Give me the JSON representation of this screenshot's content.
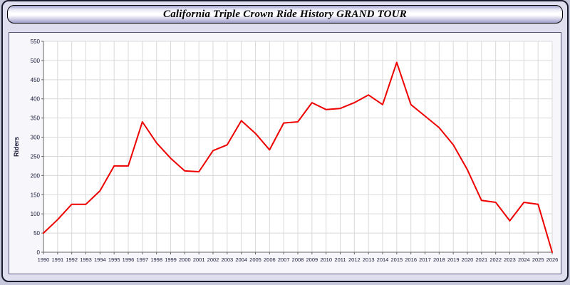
{
  "header": {
    "title": "California Triple Crown Ride History GRAND TOUR"
  },
  "chart_data": {
    "type": "line",
    "title": "California Triple Crown Ride History GRAND TOUR",
    "xlabel": "",
    "ylabel": "Riders",
    "ylim": [
      0,
      550
    ],
    "ytick_step": 50,
    "grid": true,
    "legend": "none",
    "line_color": "#ee0000",
    "plot_background": "#ffffff",
    "x": [
      1990,
      1991,
      1992,
      1993,
      1994,
      1995,
      1996,
      1997,
      1998,
      1999,
      2000,
      2001,
      2002,
      2003,
      2004,
      2005,
      2006,
      2007,
      2008,
      2009,
      2010,
      2011,
      2012,
      2013,
      2014,
      2015,
      2016,
      2017,
      2018,
      2019,
      2020,
      2021,
      2022,
      2023,
      2024,
      2025,
      2026
    ],
    "series": [
      {
        "name": "Riders",
        "values": [
          50,
          85,
          125,
          125,
          160,
          225,
          225,
          340,
          285,
          245,
          212,
          210,
          265,
          280,
          343,
          310,
          267,
          337,
          340,
          390,
          372,
          375,
          390,
          410,
          385,
          495,
          385,
          355,
          325,
          280,
          215,
          135,
          130,
          82,
          130,
          125,
          0
        ]
      }
    ]
  }
}
